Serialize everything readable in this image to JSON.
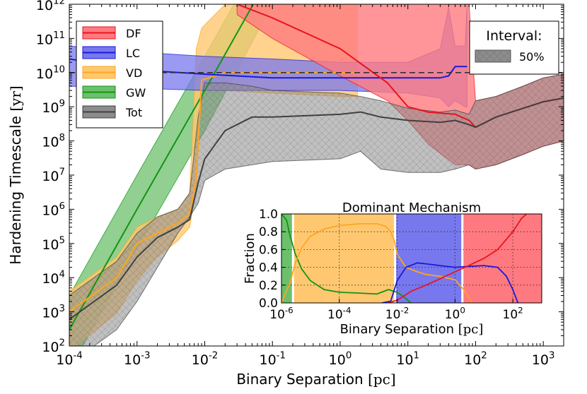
{
  "chart_data": [
    {
      "type": "area",
      "xlabel": "Binary Separation",
      "xlabel_unit": "[pc]",
      "ylabel": "Hardening Timescale",
      "ylabel_unit": "[yr]",
      "x_scale": "log",
      "y_scale": "log",
      "xlim": [
        0.0001,
        2000
      ],
      "ylim": [
        100,
        1000000000000
      ],
      "x_ticks": [
        0.0001,
        0.001,
        0.01,
        0.1,
        1,
        10,
        100,
        1000
      ],
      "x_tick_labels": [
        {
          "base": "10",
          "exp": "-4"
        },
        {
          "base": "10",
          "exp": "-3"
        },
        {
          "base": "10",
          "exp": "-2"
        },
        {
          "base": "10",
          "exp": "-1"
        },
        {
          "base": "10",
          "exp": "0"
        },
        {
          "base": "10",
          "exp": "1"
        },
        {
          "base": "10",
          "exp": "2"
        },
        {
          "base": "10",
          "exp": "3"
        }
      ],
      "y_ticks": [
        100,
        1000,
        10000,
        100000,
        1000000,
        10000000,
        100000000,
        1000000000,
        10000000000,
        100000000000,
        1000000000000
      ],
      "y_tick_labels": [
        {
          "base": "10",
          "exp": "2"
        },
        {
          "base": "10",
          "exp": "3"
        },
        {
          "base": "10",
          "exp": "4"
        },
        {
          "base": "10",
          "exp": "5"
        },
        {
          "base": "10",
          "exp": "6"
        },
        {
          "base": "10",
          "exp": "7"
        },
        {
          "base": "10",
          "exp": "8"
        },
        {
          "base": "10",
          "exp": "9"
        },
        {
          "base": "10",
          "exp": "10"
        },
        {
          "base": "10",
          "exp": "11"
        },
        {
          "base": "10",
          "exp": "12"
        }
      ],
      "reference_line": {
        "y": 10000000000,
        "style": "dashed",
        "color": "#333333"
      },
      "legend": {
        "placement": "top-left",
        "entries": [
          {
            "label": "DF",
            "color": "#e8141e",
            "fill": "#ff7a80"
          },
          {
            "label": "LC",
            "color": "#1a1ad8",
            "fill": "#7878ee"
          },
          {
            "label": "VD",
            "color": "#ffa520",
            "fill": "#ffc870"
          },
          {
            "label": "GW",
            "color": "#139413",
            "fill": "#6cc06c"
          },
          {
            "label": "Tot",
            "color": "#404040",
            "fill": "#8c8c8c"
          }
        ]
      },
      "interval_legend": {
        "placement": "top-right",
        "title": "Interval:",
        "entries": [
          {
            "label": "50%",
            "fill": "#8c8c8c"
          }
        ]
      },
      "series": [
        {
          "name": "GW",
          "color": "#139413",
          "fill": "#6cc06c",
          "x": [
            0.0001,
            0.001,
            0.01,
            0.1
          ],
          "lower": [
            20,
            70000,
            200000000,
            1000000000000
          ],
          "median": [
            300,
            1000000,
            3000000000,
            10000000000000
          ],
          "upper": [
            3000,
            10000000,
            30000000000,
            100000000000000
          ]
        },
        {
          "name": "VD",
          "color": "#ffa520",
          "fill": "#ffc870",
          "x": [
            0.0001,
            0.0005,
            0.001,
            0.002,
            0.004,
            0.006,
            0.0075,
            0.009,
            0.02,
            0.1,
            1,
            1.8
          ],
          "lower": [
            70,
            900,
            8000,
            40000,
            120000,
            300000,
            4000000,
            3000000000,
            3000000000,
            2500000000,
            2000000000,
            2000000000
          ],
          "median": [
            1000,
            10000,
            100000,
            200000,
            400000,
            700000,
            8000000,
            6000000000,
            10000000000,
            10000000000,
            10000000000,
            10000000000
          ],
          "upper": [
            4000,
            40000,
            300000,
            600000,
            1000000,
            3000000,
            50000000000,
            200000000000,
            1000000000000,
            1000000000000,
            1000000000000,
            1000000000000
          ]
        },
        {
          "name": "LC",
          "color": "#1a1ad8",
          "fill": "#7878ee",
          "x": [
            0.0001,
            0.001,
            0.01,
            0.1,
            1,
            10,
            30,
            40,
            50,
            70,
            75
          ],
          "lower": [
            4000000000,
            3500000000,
            3000000000,
            3000000000,
            3000000000,
            2500000000,
            1800000000,
            1000000000,
            1500000000,
            1000000000,
            1000000000
          ],
          "median": [
            25000000000,
            12000000000,
            9000000000,
            7000000000,
            7000000000,
            7000000000,
            7000000000,
            8000000000,
            15000000000,
            15000000000,
            15000000000
          ],
          "upper": [
            60000000000,
            40000000000,
            30000000000,
            25000000000,
            20000000000,
            20000000000,
            50000000000,
            800000000000,
            60000000000,
            60000000000,
            1000000000000
          ]
        },
        {
          "name": "DF",
          "color": "#e8141e",
          "fill": "#ff7a80",
          "x": [
            0.03,
            0.1,
            1,
            5,
            10,
            20,
            50,
            80,
            100,
            200,
            500,
            1000,
            2000
          ],
          "lower": [
            500000000000,
            100000000000,
            8000000000,
            1500000000,
            400000000,
            80000000,
            20000000,
            20000000,
            15000000,
            20000000,
            40000000,
            70000000,
            100000000
          ],
          "median": [
            1000000000000,
            400000000000,
            50000000000,
            5000000000,
            1000000000,
            700000000,
            600000000,
            400000000,
            250000000,
            500000000,
            900000000,
            1400000000,
            1800000000
          ],
          "upper": [
            1000000000000,
            1000000000000,
            1000000000000,
            1000000000000,
            1000000000000,
            1000000000000,
            1000000000000,
            1000000000000,
            1500000000,
            2000000000,
            4000000000,
            7000000000,
            9000000000
          ]
        },
        {
          "name": "Tot",
          "color": "#404040",
          "fill": "#8c8c8c",
          "x": [
            0.0001,
            0.0005,
            0.001,
            0.002,
            0.004,
            0.006,
            0.008,
            0.01,
            0.02,
            0.05,
            0.1,
            1,
            2,
            4,
            10,
            30,
            50,
            80,
            100,
            200,
            500,
            1000,
            2000
          ],
          "lower": [
            30,
            300,
            2000,
            20000,
            200000,
            600000,
            1500000,
            7000000,
            15000000,
            20000000,
            25000000,
            30000000,
            50000000,
            15000000,
            12000000,
            12000000,
            15000000,
            20000000,
            15000000,
            20000000,
            40000000,
            70000000,
            100000000
          ],
          "median": [
            600,
            6000,
            40000,
            150000,
            300000,
            500000,
            6000000,
            30000000,
            200000000,
            500000000,
            500000000,
            600000000,
            700000000,
            500000000,
            400000000,
            350000000,
            400000000,
            300000000,
            250000000,
            500000000,
            900000000,
            1400000000,
            1800000000
          ],
          "upper": [
            3000,
            30000,
            200000,
            600000,
            1000000,
            3000000,
            500000000,
            5000000000,
            5000000000,
            4000000000,
            3000000000,
            2500000000,
            2000000000,
            1500000000,
            900000000,
            700000000,
            800000000,
            600000000,
            1500000000,
            2000000000,
            4000000000,
            7000000000,
            9000000000
          ]
        }
      ]
    },
    {
      "type": "line",
      "title": "Dominant Mechanism",
      "xlabel": "Binary Separation",
      "xlabel_unit": "[pc]",
      "ylabel": "Fraction",
      "x_scale": "log",
      "xlim": [
        1e-06,
        1000
      ],
      "ylim": [
        0.0,
        1.0
      ],
      "grid": true,
      "x_ticks": [
        1e-06,
        0.0001,
        0.01,
        1,
        100
      ],
      "x_tick_labels": [
        {
          "base": "10",
          "exp": "-6"
        },
        {
          "base": "10",
          "exp": "-4"
        },
        {
          "base": "10",
          "exp": "-2"
        },
        {
          "base": "10",
          "exp": "0"
        },
        {
          "base": "10",
          "exp": "2"
        }
      ],
      "y_ticks": [
        0.0,
        0.2,
        0.4,
        0.6,
        0.8,
        1.0
      ],
      "y_tick_labels": [
        "0.0",
        "0.2",
        "0.4",
        "0.6",
        "0.8",
        "1.0"
      ],
      "dominance_bands": [
        {
          "name": "GW",
          "from": 1e-06,
          "to": 2.5e-06,
          "color": "#6cc06c"
        },
        {
          "name": "VD",
          "from": 2.5e-06,
          "to": 0.0085,
          "color": "#ffc870"
        },
        {
          "name": "LC",
          "from": 0.0085,
          "to": 1.8,
          "color": "#7878ee"
        },
        {
          "name": "DF",
          "from": 1.8,
          "to": 1000,
          "color": "#ff7a80"
        }
      ],
      "series": [
        {
          "name": "GW",
          "color": "#139413",
          "x": [
            1e-06,
            1.5e-06,
            2e-06,
            3e-06,
            5e-06,
            1e-05,
            3e-05,
            0.0001,
            0.0005,
            0.002,
            0.005,
            0.01,
            0.02,
            0.03
          ],
          "y": [
            1.0,
            0.93,
            0.75,
            0.55,
            0.38,
            0.25,
            0.15,
            0.12,
            0.11,
            0.1,
            0.15,
            0.12,
            0.05,
            0.0
          ]
        },
        {
          "name": "VD",
          "color": "#ffa520",
          "x": [
            1e-06,
            2e-06,
            3e-06,
            5e-06,
            1e-05,
            3e-05,
            0.0001,
            0.0005,
            0.002,
            0.004,
            0.006,
            0.008,
            0.01,
            0.02,
            0.05,
            0.1,
            0.3,
            1,
            2,
            4
          ],
          "y": [
            0.0,
            0.23,
            0.45,
            0.62,
            0.75,
            0.83,
            0.87,
            0.89,
            0.89,
            0.86,
            0.8,
            0.7,
            0.55,
            0.4,
            0.35,
            0.32,
            0.3,
            0.26,
            0.15,
            0.0
          ]
        },
        {
          "name": "LC",
          "color": "#1a1ad8",
          "x": [
            0.003,
            0.006,
            0.01,
            0.02,
            0.05,
            0.1,
            0.3,
            1,
            3,
            10,
            30,
            60,
            100,
            150
          ],
          "y": [
            0.0,
            0.02,
            0.25,
            0.4,
            0.45,
            0.44,
            0.42,
            0.4,
            0.41,
            0.42,
            0.4,
            0.3,
            0.15,
            0.0
          ]
        },
        {
          "name": "DF",
          "color": "#e8141e",
          "x": [
            0.005,
            0.01,
            0.03,
            0.1,
            0.3,
            1,
            3,
            10,
            30,
            100,
            200,
            300
          ],
          "y": [
            0.0,
            0.03,
            0.13,
            0.2,
            0.27,
            0.35,
            0.42,
            0.5,
            0.6,
            0.8,
            0.95,
            1.0
          ]
        }
      ]
    }
  ]
}
